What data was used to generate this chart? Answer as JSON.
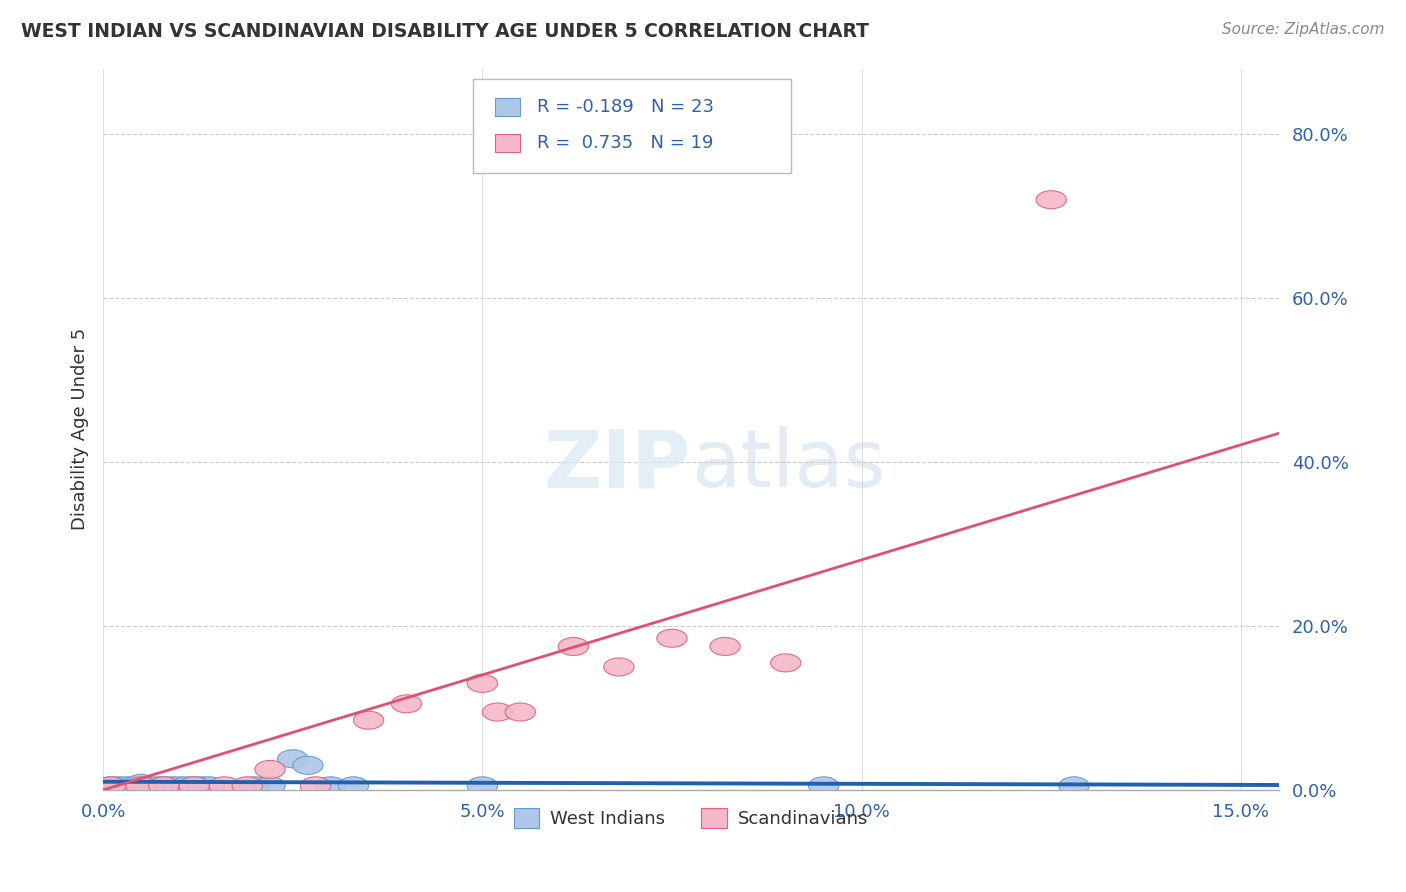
{
  "title": "WEST INDIAN VS SCANDINAVIAN DISABILITY AGE UNDER 5 CORRELATION CHART",
  "source": "Source: ZipAtlas.com",
  "xlabel_ticks": [
    "0.0%",
    "5.0%",
    "10.0%",
    "15.0%"
  ],
  "xlabel_vals": [
    0.0,
    0.05,
    0.1,
    0.15
  ],
  "ylabel": "Disability Age Under 5",
  "ylabel_ticks": [
    "0.0%",
    "20.0%",
    "40.0%",
    "60.0%",
    "80.0%"
  ],
  "ylabel_vals": [
    0.0,
    0.2,
    0.4,
    0.6,
    0.8
  ],
  "xlim": [
    0.0,
    0.155
  ],
  "ylim": [
    0.0,
    0.88
  ],
  "west_indian_r": -0.189,
  "west_indian_n": 23,
  "scandinavian_r": 0.735,
  "scandinavian_n": 19,
  "west_indian_color": "#aec6e8",
  "scandinavian_color": "#f5b8c8",
  "west_indian_edge_color": "#6699cc",
  "scandinavian_edge_color": "#e06080",
  "west_indian_line_color": "#2060b0",
  "scandinavian_line_color": "#e05070",
  "background_color": "#ffffff",
  "grid_color": "#cccccc",
  "west_indian_x": [
    0.001,
    0.002,
    0.003,
    0.004,
    0.005,
    0.006,
    0.007,
    0.008,
    0.009,
    0.01,
    0.011,
    0.012,
    0.013,
    0.014,
    0.02,
    0.022,
    0.025,
    0.027,
    0.03,
    0.033,
    0.05,
    0.095,
    0.128
  ],
  "west_indian_y": [
    0.005,
    0.005,
    0.005,
    0.005,
    0.008,
    0.005,
    0.005,
    0.005,
    0.005,
    0.005,
    0.005,
    0.005,
    0.005,
    0.005,
    0.005,
    0.005,
    0.038,
    0.03,
    0.005,
    0.005,
    0.005,
    0.005,
    0.005
  ],
  "scandinavian_x": [
    0.001,
    0.005,
    0.008,
    0.012,
    0.016,
    0.019,
    0.022,
    0.028,
    0.035,
    0.04,
    0.05,
    0.052,
    0.055,
    0.062,
    0.068,
    0.075,
    0.082,
    0.09,
    0.125
  ],
  "scandinavian_y": [
    0.005,
    0.005,
    0.005,
    0.005,
    0.005,
    0.005,
    0.025,
    0.005,
    0.085,
    0.105,
    0.13,
    0.095,
    0.095,
    0.175,
    0.15,
    0.185,
    0.175,
    0.155,
    0.72
  ],
  "wi_line_x0": 0.0,
  "wi_line_x1": 0.155,
  "wi_line_y0": 0.01,
  "wi_line_y1": 0.006,
  "sc_line_x0": 0.0,
  "sc_line_x1": 0.155,
  "sc_line_y0": 0.0,
  "sc_line_y1": 0.435
}
